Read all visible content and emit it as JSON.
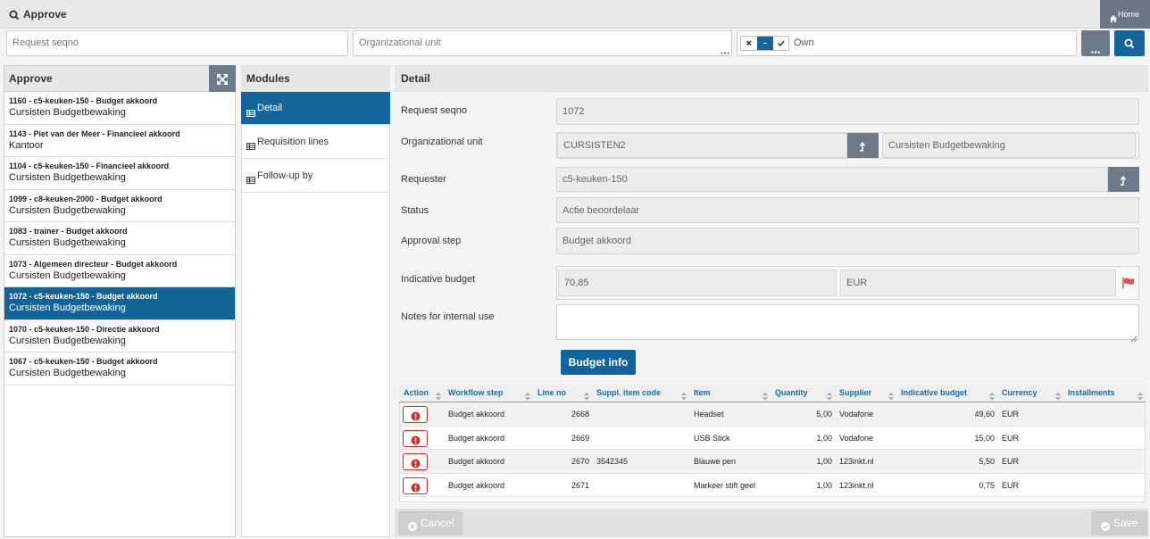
{
  "header": {
    "title": "Approve",
    "home": "Home"
  },
  "filters": {
    "request_seqno": "Request seqno",
    "organizational_unit": "Organizational unit",
    "own": "Own"
  },
  "list": {
    "title": "Approve",
    "items": [
      {
        "title": "1160 - c5-keuken-150 - Budget akkoord",
        "subtitle": "Cursisten Budgetbewaking"
      },
      {
        "title": "1143 - Piet van der Meer - Financieel akkoord",
        "subtitle": "Kantoor"
      },
      {
        "title": "1104 - c5-keuken-150 - Financieel akkoord",
        "subtitle": "Cursisten Budgetbewaking"
      },
      {
        "title": "1099 - c8-keuken-2000 - Budget akkoord",
        "subtitle": "Cursisten Budgetbewaking"
      },
      {
        "title": "1083 - trainer - Budget akkoord",
        "subtitle": "Cursisten Budgetbewaking"
      },
      {
        "title": "1073 - Algemeen directeur - Budget akkoord",
        "subtitle": "Cursisten Budgetbewaking"
      },
      {
        "title": "1072 - c5-keuken-150 - Budget akkoord",
        "subtitle": "Cursisten Budgetbewaking"
      },
      {
        "title": "1070 - c5-keuken-150 - Directie akkoord",
        "subtitle": "Cursisten Budgetbewaking"
      },
      {
        "title": "1067 - c5-keuken-150 - Budget akkoord",
        "subtitle": "Cursisten Budgetbewaking"
      }
    ],
    "selected": 6
  },
  "modules": {
    "title": "Modules",
    "items": [
      "Detail",
      "Requisition lines",
      "Follow-up by"
    ],
    "selected": 0
  },
  "detail": {
    "title": "Detail",
    "request_seqno": {
      "label": "Request seqno",
      "value": "1072"
    },
    "organizational_unit": {
      "label": "Organizational unit",
      "code": "CURSISTEN2",
      "name": "Cursisten Budgetbewaking"
    },
    "requester": {
      "label": "Requester",
      "value": "c5-keuken-150"
    },
    "status": {
      "label": "Status",
      "value": "Actie beoordelaar"
    },
    "approval_step": {
      "label": "Approval step",
      "value": "Budget akkoord"
    },
    "indicative_budget": {
      "label": "Indicative budget",
      "amount": "70,85",
      "currency": "EUR"
    },
    "notes": {
      "label": "Notes for internal use"
    },
    "budget_button": "Budget info",
    "table": {
      "columns": [
        "Action",
        "Workflow step",
        "Line no",
        "Suppl. item code",
        "Item",
        "Quantity",
        "Supplier",
        "Indicative budget",
        "Currency",
        "Installments"
      ],
      "rows": [
        {
          "workflow_step": "Budget akkoord",
          "line_no": 2668,
          "item": "Headset",
          "quantity": "5,00",
          "supplier": "Vodafone",
          "indicative_budget": "49,60",
          "currency": "EUR"
        },
        {
          "workflow_step": "Budget akkoord",
          "line_no": 2669,
          "item": "USB Stick",
          "quantity": "1,00",
          "supplier": "Vodafone",
          "indicative_budget": "15,00",
          "currency": "EUR"
        },
        {
          "workflow_step": "Budget akkoord",
          "line_no": 2670,
          "suppl_item_code": "3542345",
          "item": "Blauwe pen",
          "quantity": "1,00",
          "supplier": "123inkt.nl",
          "indicative_budget": "5,50",
          "currency": "EUR"
        },
        {
          "workflow_step": "Budget akkoord",
          "line_no": 2671,
          "item": "Markeer stift geel",
          "quantity": "1,00",
          "supplier": "123inkt.nl",
          "indicative_budget": "0,75",
          "currency": "EUR"
        }
      ]
    }
  },
  "footer": {
    "cancel": "Cancel",
    "save": "Save"
  }
}
